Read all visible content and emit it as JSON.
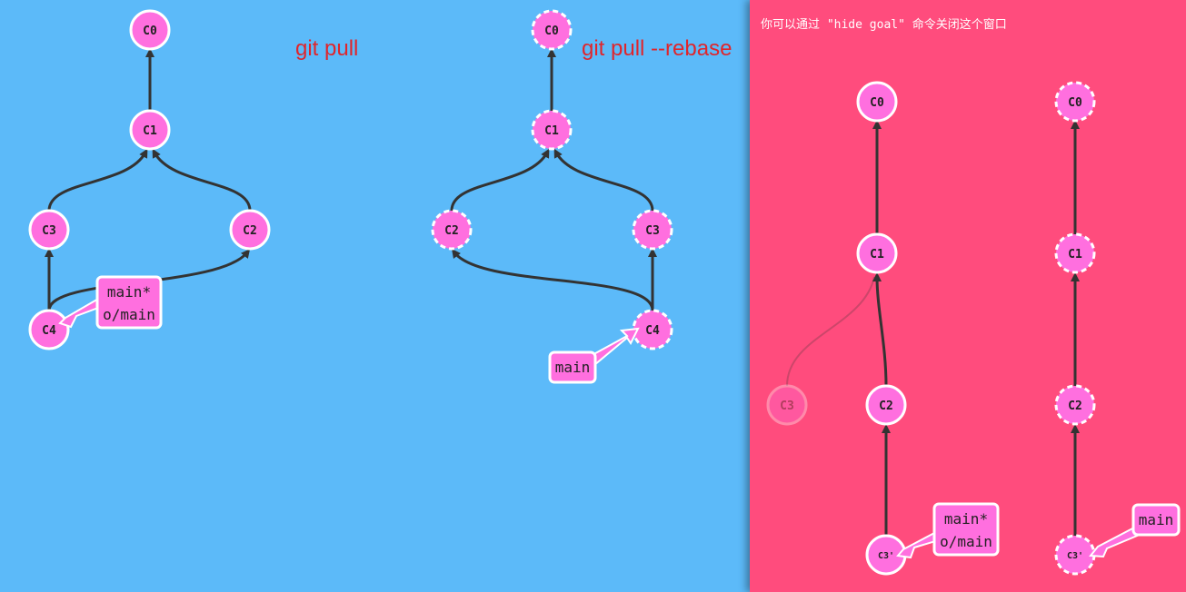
{
  "colors": {
    "background": "#5cbaf9",
    "goal_background": "#ff4c7d",
    "commit_fill": "#ff6fdf",
    "edge": "#333333",
    "annotation": "#e0252b",
    "branch_box": "#ff6fdf"
  },
  "labels": {
    "git_pull": "git pull",
    "git_pull_rebase": "git pull --rebase",
    "goal_hint": "你可以通过 \"hide goal\" 命令关闭这个窗口"
  },
  "trees": {
    "pull": {
      "commits": {
        "C0": "C0",
        "C1": "C1",
        "C2": "C2",
        "C3": "C3",
        "C4": "C4"
      },
      "branch": [
        "main*",
        "o/main"
      ]
    },
    "rebase": {
      "commits": {
        "C0": "C0",
        "C1": "C1",
        "C2": "C2",
        "C3": "C3",
        "C4": "C4"
      },
      "branch": [
        "main"
      ]
    },
    "goal_left": {
      "commits": {
        "C0": "C0",
        "C1": "C1",
        "C2": "C2",
        "C3": "C3",
        "C3p": "C3'"
      },
      "branch": [
        "main*",
        "o/main"
      ]
    },
    "goal_right": {
      "commits": {
        "C0": "C0",
        "C1": "C1",
        "C2": "C2",
        "C3p": "C3'"
      },
      "branch": [
        "main"
      ]
    }
  }
}
